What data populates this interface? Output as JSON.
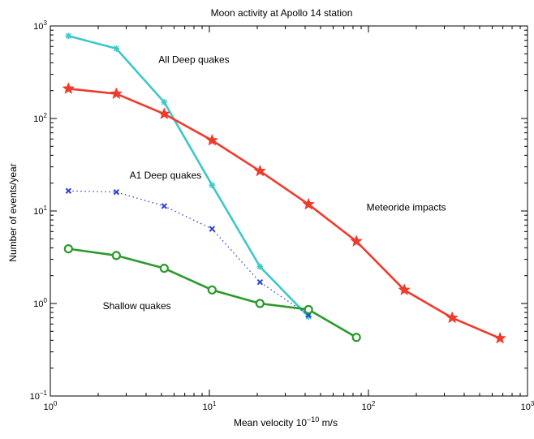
{
  "chart_data": {
    "type": "line",
    "title": "Moon activity at Apollo 14 station",
    "xlabel": "Mean velocity 10",
    "xlabel_exp": "−10",
    "xlabel_unit": " m/s",
    "ylabel": "Number of events/year",
    "xscale": "log",
    "yscale": "log",
    "xlim": [
      1,
      1000
    ],
    "ylim": [
      0.1,
      1000
    ],
    "x_ticks": [
      {
        "value": 1,
        "base": "10",
        "exp": "0"
      },
      {
        "value": 10,
        "base": "10",
        "exp": "1"
      },
      {
        "value": 100,
        "base": "10",
        "exp": "2"
      },
      {
        "value": 1000,
        "base": "10",
        "exp": "3"
      }
    ],
    "y_ticks": [
      {
        "value": 0.1,
        "base": "10",
        "exp": "−1"
      },
      {
        "value": 1,
        "base": "10",
        "exp": "0"
      },
      {
        "value": 10,
        "base": "10",
        "exp": "1"
      },
      {
        "value": 100,
        "base": "10",
        "exp": "2"
      },
      {
        "value": 1000,
        "base": "10",
        "exp": "3"
      }
    ],
    "grid": false,
    "series": [
      {
        "name": "All Deep quakes",
        "color": "#3cc8c8",
        "marker": "cross",
        "dashed": false,
        "points": [
          [
            1.3,
            780
          ],
          [
            2.6,
            570
          ],
          [
            5.2,
            150
          ],
          [
            10.4,
            19
          ],
          [
            20.8,
            2.5
          ],
          [
            42,
            0.72
          ]
        ]
      },
      {
        "name": "Meteoride impacts",
        "color": "#f03a2a",
        "marker": "star",
        "dashed": false,
        "points": [
          [
            1.3,
            210
          ],
          [
            2.6,
            185
          ],
          [
            5.2,
            112
          ],
          [
            10.4,
            58
          ],
          [
            20.8,
            27
          ],
          [
            42,
            11.8
          ],
          [
            84,
            4.7
          ],
          [
            168,
            1.4
          ],
          [
            336,
            0.7
          ],
          [
            672,
            0.42
          ]
        ]
      },
      {
        "name": "A1 Deep quakes",
        "color": "#2a3ee0",
        "marker": "x",
        "dashed": true,
        "points": [
          [
            1.3,
            16.5
          ],
          [
            2.6,
            16
          ],
          [
            5.2,
            11.3
          ],
          [
            10.4,
            6.4
          ],
          [
            20.8,
            1.7
          ],
          [
            42,
            0.75
          ]
        ]
      },
      {
        "name": "Shallow quakes",
        "color": "#2a9a2a",
        "marker": "circle",
        "dashed": false,
        "points": [
          [
            1.3,
            3.9
          ],
          [
            2.6,
            3.3
          ],
          [
            5.2,
            2.4
          ],
          [
            10.4,
            1.4
          ],
          [
            20.8,
            1.0
          ],
          [
            42,
            0.86
          ],
          [
            84,
            0.43
          ]
        ]
      }
    ],
    "annotations": [
      {
        "text": "All Deep quakes",
        "x": 8.0,
        "y": 400,
        "anchor": "middle"
      },
      {
        "text": "A1 Deep quakes",
        "x": 5.3,
        "y": 22.5,
        "anchor": "middle"
      },
      {
        "text": "Meteoride impacts",
        "x": 173,
        "y": 10.1,
        "anchor": "middle"
      },
      {
        "text": "Shallow quakes",
        "x": 3.5,
        "y": 0.87,
        "anchor": "middle"
      }
    ]
  }
}
